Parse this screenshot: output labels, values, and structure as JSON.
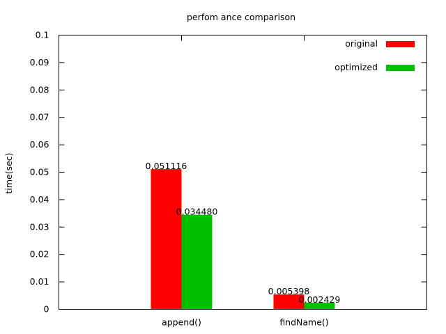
{
  "chart_data": {
    "type": "bar",
    "title": "perfom ance comparison",
    "xlabel": "",
    "ylabel": "time(sec)",
    "categories": [
      "append()",
      "findName()"
    ],
    "series": [
      {
        "name": "original",
        "color": "#ff0000",
        "values": [
          0.051116,
          0.005398
        ],
        "labels": [
          "0.051116",
          "0.005398"
        ]
      },
      {
        "name": "optimized",
        "color": "#00c000",
        "values": [
          0.03448,
          0.002429
        ],
        "labels": [
          "0.034480",
          "0.002429"
        ]
      }
    ],
    "ylim": [
      0,
      0.1
    ],
    "yticks": [
      0,
      0.01,
      0.02,
      0.03,
      0.04,
      0.05,
      0.06,
      0.07,
      0.08,
      0.09,
      0.1
    ],
    "ytick_labels": [
      "0",
      "0.01",
      "0.02",
      "0.03",
      "0.04",
      "0.05",
      "0.06",
      "0.07",
      "0.08",
      "0.09",
      "0.1"
    ],
    "grid": false,
    "legend": "top-right"
  }
}
